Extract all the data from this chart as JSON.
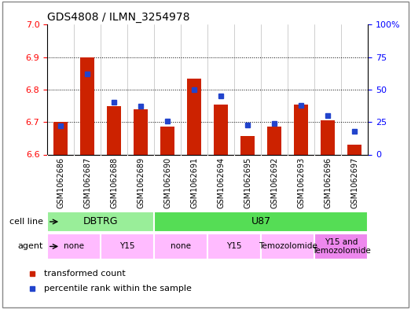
{
  "title": "GDS4808 / ILMN_3254978",
  "samples": [
    "GSM1062686",
    "GSM1062687",
    "GSM1062688",
    "GSM1062689",
    "GSM1062690",
    "GSM1062691",
    "GSM1062694",
    "GSM1062695",
    "GSM1062692",
    "GSM1062693",
    "GSM1062696",
    "GSM1062697"
  ],
  "red_values": [
    6.7,
    6.9,
    6.75,
    6.74,
    6.685,
    6.835,
    6.755,
    6.658,
    6.685,
    6.755,
    6.705,
    6.63
  ],
  "blue_values": [
    22,
    62,
    40,
    37,
    26,
    50,
    45,
    23,
    24,
    38,
    30,
    18
  ],
  "y_min": 6.6,
  "y_max": 7.0,
  "y_ticks_left": [
    6.6,
    6.7,
    6.8,
    6.9,
    7.0
  ],
  "y_ticks_right": [
    0,
    25,
    50,
    75,
    100
  ],
  "bar_color": "#cc2200",
  "dot_color": "#2244cc",
  "cell_line_groups": [
    {
      "label": "DBTRG",
      "start": 0,
      "end": 4,
      "color": "#99ee99"
    },
    {
      "label": "U87",
      "start": 4,
      "end": 12,
      "color": "#55dd55"
    }
  ],
  "agent_groups": [
    {
      "label": "none",
      "start": 0,
      "end": 2,
      "color": "#ffbbff"
    },
    {
      "label": "Y15",
      "start": 2,
      "end": 4,
      "color": "#ffbbff"
    },
    {
      "label": "none",
      "start": 4,
      "end": 6,
      "color": "#ffbbff"
    },
    {
      "label": "Y15",
      "start": 6,
      "end": 8,
      "color": "#ffbbff"
    },
    {
      "label": "Temozolomide",
      "start": 8,
      "end": 10,
      "color": "#ffbbff"
    },
    {
      "label": "Y15 and\nTemozolomide",
      "start": 10,
      "end": 12,
      "color": "#ee88ee"
    }
  ],
  "cell_line_row_label": "cell line",
  "agent_row_label": "agent",
  "legend_red": "transformed count",
  "legend_blue": "percentile rank within the sample",
  "background_color": "#ffffff"
}
